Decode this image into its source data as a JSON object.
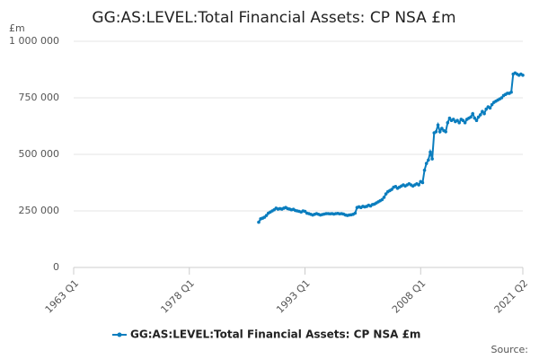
{
  "chart_data": {
    "type": "line",
    "title": "GG:AS:LEVEL:Total Financial Assets: CP NSA £m",
    "y_unit": "£m",
    "source": "Source:",
    "xlim": [
      "1963 Q1",
      "2021 Q2"
    ],
    "xticks": [
      "1963 Q1",
      "1978 Q1",
      "1993 Q1",
      "2008 Q1",
      "2021 Q2"
    ],
    "ylim": [
      0,
      1000000
    ],
    "yticks": [
      0,
      {
        "value": 250000,
        "label": "250 000"
      },
      {
        "value": 500000,
        "label": "500 000"
      },
      {
        "value": 750000,
        "label": "750 000"
      },
      {
        "value": 1000000,
        "label": "1 000 000"
      }
    ],
    "grid": true,
    "legend": "bottom",
    "x": [
      "1987 Q1",
      "1987 Q2",
      "1987 Q3",
      "1987 Q4",
      "1988 Q1",
      "1988 Q2",
      "1988 Q3",
      "1988 Q4",
      "1989 Q1",
      "1989 Q2",
      "1989 Q3",
      "1989 Q4",
      "1990 Q1",
      "1990 Q2",
      "1990 Q3",
      "1990 Q4",
      "1991 Q1",
      "1991 Q2",
      "1991 Q3",
      "1991 Q4",
      "1992 Q1",
      "1992 Q2",
      "1992 Q3",
      "1992 Q4",
      "1993 Q1",
      "1993 Q2",
      "1993 Q3",
      "1993 Q4",
      "1994 Q1",
      "1994 Q2",
      "1994 Q3",
      "1994 Q4",
      "1995 Q1",
      "1995 Q2",
      "1995 Q3",
      "1995 Q4",
      "1996 Q1",
      "1996 Q2",
      "1996 Q3",
      "1996 Q4",
      "1997 Q1",
      "1997 Q2",
      "1997 Q3",
      "1997 Q4",
      "1998 Q1",
      "1998 Q2",
      "1998 Q3",
      "1998 Q4",
      "1999 Q1",
      "1999 Q2",
      "1999 Q3",
      "1999 Q4",
      "2000 Q1",
      "2000 Q2",
      "2000 Q3",
      "2000 Q4",
      "2001 Q1",
      "2001 Q2",
      "2001 Q3",
      "2001 Q4",
      "2002 Q1",
      "2002 Q2",
      "2002 Q3",
      "2002 Q4",
      "2003 Q1",
      "2003 Q2",
      "2003 Q3",
      "2003 Q4",
      "2004 Q1",
      "2004 Q2",
      "2004 Q3",
      "2004 Q4",
      "2005 Q1",
      "2005 Q2",
      "2005 Q3",
      "2005 Q4",
      "2006 Q1",
      "2006 Q2",
      "2006 Q3",
      "2006 Q4",
      "2007 Q1",
      "2007 Q2",
      "2007 Q3",
      "2007 Q4",
      "2008 Q1",
      "2008 Q2",
      "2008 Q3",
      "2008 Q4",
      "2009 Q1",
      "2009 Q2",
      "2009 Q3",
      "2009 Q4",
      "2010 Q1",
      "2010 Q2",
      "2010 Q3",
      "2010 Q4",
      "2011 Q1",
      "2011 Q2",
      "2011 Q3",
      "2011 Q4",
      "2012 Q1",
      "2012 Q2",
      "2012 Q3",
      "2012 Q4",
      "2013 Q1",
      "2013 Q2",
      "2013 Q3",
      "2013 Q4",
      "2014 Q1",
      "2014 Q2",
      "2014 Q3",
      "2014 Q4",
      "2015 Q1",
      "2015 Q2",
      "2015 Q3",
      "2015 Q4",
      "2016 Q1",
      "2016 Q2",
      "2016 Q3",
      "2016 Q4",
      "2017 Q1",
      "2017 Q2",
      "2017 Q3",
      "2017 Q4",
      "2018 Q1",
      "2018 Q2",
      "2018 Q3",
      "2018 Q4",
      "2019 Q1",
      "2019 Q2",
      "2019 Q3",
      "2019 Q4",
      "2020 Q1",
      "2020 Q2",
      "2020 Q3",
      "2020 Q4",
      "2021 Q1",
      "2021 Q2"
    ],
    "series": [
      {
        "name": "GG:AS:LEVEL:Total Financial Assets: CP NSA £m",
        "color": "#0a7dbe",
        "values": [
          200000,
          215000,
          218000,
          222000,
          230000,
          240000,
          245000,
          250000,
          255000,
          262000,
          258000,
          260000,
          258000,
          262000,
          265000,
          260000,
          258000,
          255000,
          257000,
          252000,
          250000,
          248000,
          245000,
          250000,
          248000,
          240000,
          238000,
          235000,
          232000,
          235000,
          238000,
          235000,
          232000,
          234000,
          236000,
          238000,
          238000,
          237000,
          238000,
          236000,
          238000,
          239000,
          237000,
          238000,
          236000,
          232000,
          230000,
          232000,
          233000,
          235000,
          240000,
          265000,
          268000,
          265000,
          270000,
          268000,
          270000,
          275000,
          272000,
          278000,
          280000,
          285000,
          290000,
          295000,
          300000,
          310000,
          325000,
          335000,
          340000,
          345000,
          355000,
          358000,
          350000,
          355000,
          360000,
          365000,
          360000,
          365000,
          370000,
          365000,
          360000,
          365000,
          370000,
          365000,
          380000,
          375000,
          430000,
          460000,
          475000,
          510000,
          480000,
          595000,
          600000,
          630000,
          600000,
          615000,
          605000,
          600000,
          640000,
          660000,
          650000,
          655000,
          645000,
          650000,
          640000,
          655000,
          650000,
          640000,
          655000,
          660000,
          665000,
          680000,
          660000,
          650000,
          665000,
          675000,
          690000,
          680000,
          700000,
          710000,
          705000,
          720000,
          730000,
          735000,
          740000,
          745000,
          750000,
          760000,
          765000,
          770000,
          770000,
          775000,
          855000,
          860000,
          855000,
          850000,
          855000,
          850000
        ]
      }
    ]
  }
}
